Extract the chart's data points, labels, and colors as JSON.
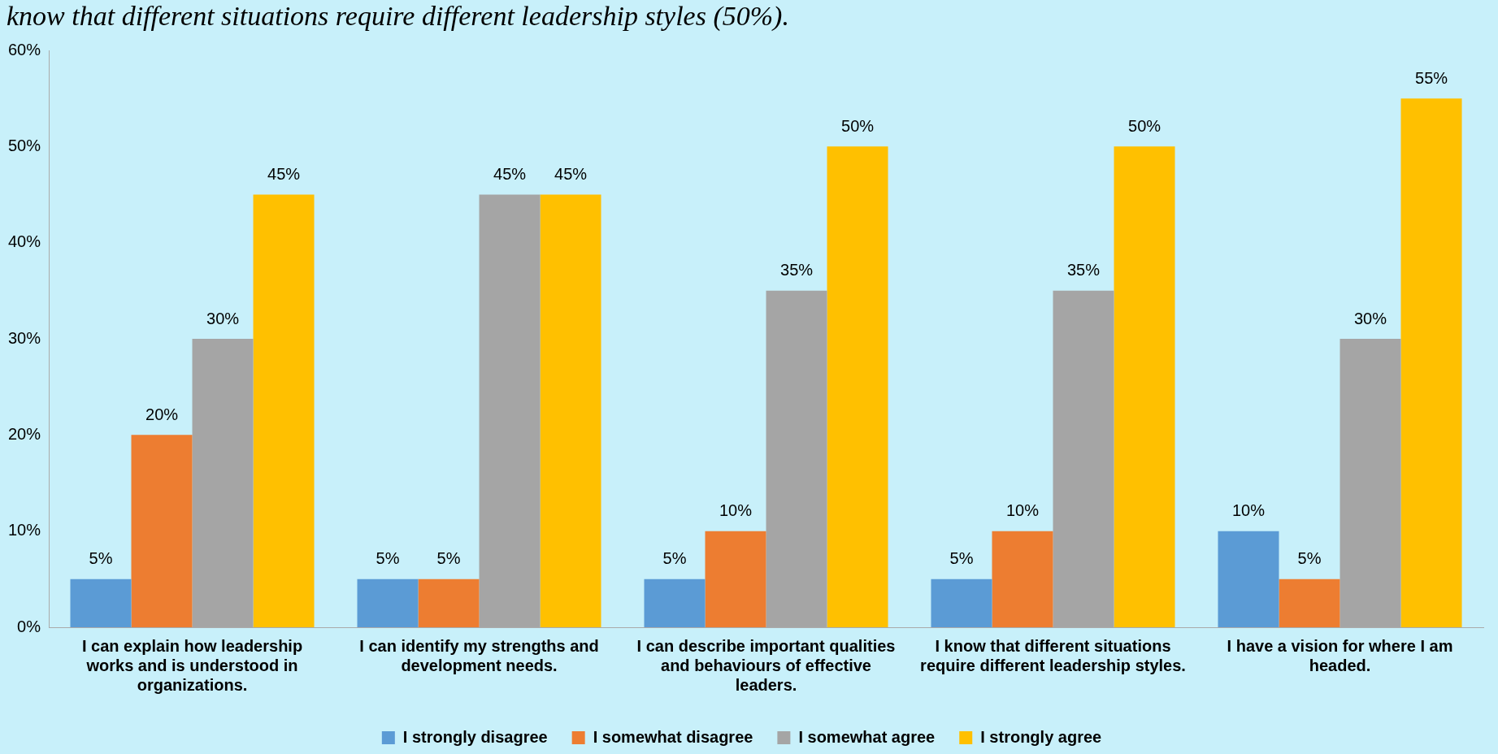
{
  "chart_data": {
    "type": "bar",
    "title": "know that different situations require different leadership styles (50%).",
    "categories": [
      "I can explain how leadership works and is understood in organizations.",
      "I can identify my strengths and development needs.",
      "I can describe important qualities and behaviours of effective leaders.",
      "I know that different situations require different leadership styles.",
      "I have a vision for where I am headed."
    ],
    "series": [
      {
        "name": "I strongly disagree",
        "color": "#5b9bd5",
        "values": [
          5,
          5,
          5,
          5,
          10
        ],
        "value_labels": [
          "5%",
          "5%",
          "5%",
          "5%",
          "10%"
        ]
      },
      {
        "name": "I somewhat disagree",
        "color": "#ed7d31",
        "values": [
          20,
          5,
          10,
          10,
          5
        ],
        "value_labels": [
          "20%",
          "5%",
          "10%",
          "10%",
          "5%"
        ]
      },
      {
        "name": "I somewhat agree",
        "color": "#a5a5a5",
        "values": [
          30,
          45,
          35,
          35,
          30
        ],
        "value_labels": [
          "30%",
          "45%",
          "35%",
          "35%",
          "30%"
        ]
      },
      {
        "name": "I strongly agree",
        "color": "#ffc000",
        "values": [
          45,
          45,
          50,
          50,
          55
        ],
        "value_labels": [
          "45%",
          "45%",
          "50%",
          "50%",
          "55%"
        ]
      }
    ],
    "ylim": [
      0,
      60
    ],
    "yticks": [
      {
        "value": 0,
        "label": "0%"
      },
      {
        "value": 10,
        "label": "10%"
      },
      {
        "value": 20,
        "label": "20%"
      },
      {
        "value": 30,
        "label": "30%"
      },
      {
        "value": 40,
        "label": "40%"
      },
      {
        "value": 50,
        "label": "50%"
      },
      {
        "value": 60,
        "label": "60%"
      }
    ],
    "grid": false,
    "legend": "bottom"
  }
}
